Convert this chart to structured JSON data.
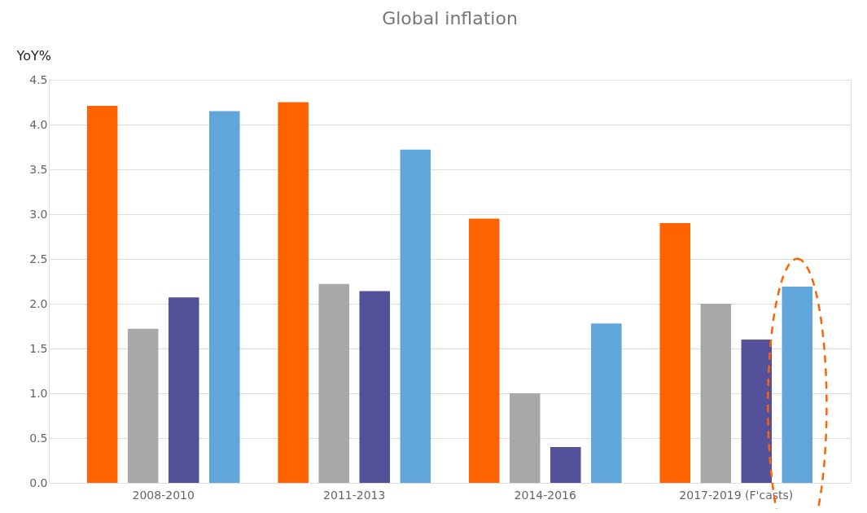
{
  "chart_data": {
    "type": "bar",
    "title": "Global inflation",
    "ylabel": "YoY%",
    "categories": [
      "2008-2010",
      "2011-2013",
      "2014-2016",
      "2017-2019 (F'casts)"
    ],
    "series": [
      {
        "color": "#ff6200",
        "values": [
          4.21,
          4.25,
          2.95,
          2.9
        ]
      },
      {
        "color": "#a8a8a8",
        "values": [
          1.72,
          2.22,
          1.0,
          2.0
        ]
      },
      {
        "color": "#525199",
        "values": [
          2.07,
          2.14,
          0.4,
          1.6
        ]
      },
      {
        "color": "#60a6da",
        "values": [
          4.15,
          3.72,
          1.78,
          2.19
        ]
      }
    ],
    "ylim": [
      0,
      4.5
    ],
    "yticks": [
      {
        "value": 0,
        "label": "0.0"
      },
      0.5,
      {
        "value": 1,
        "label": "1.0"
      },
      1.5,
      {
        "value": 2,
        "label": "2.0"
      },
      2.5,
      {
        "value": 3,
        "label": "3.0"
      },
      3.5,
      {
        "value": 4,
        "label": "4.0"
      },
      4.5
    ],
    "grid": "y",
    "legend": false
  }
}
